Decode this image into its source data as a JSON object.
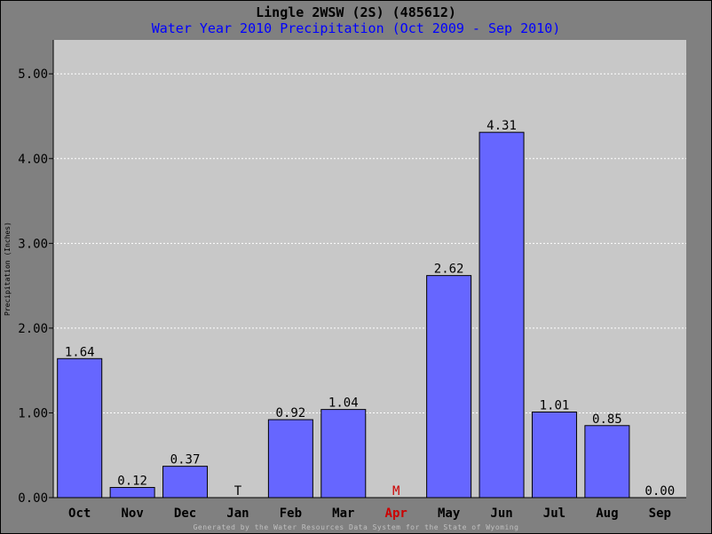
{
  "chart_data": {
    "type": "bar",
    "title": "Lingle 2WSW (2S) (485612)",
    "subtitle": "Water Year 2010 Precipitation (Oct 2009 - Sep 2010)",
    "ylabel": "Precipitation (Inches)",
    "xlabel": "",
    "ylim": [
      0,
      5.4
    ],
    "yticks": [
      "0.00",
      "1.00",
      "2.00",
      "3.00",
      "4.00",
      "5.00"
    ],
    "grid": true,
    "categories": [
      "Oct",
      "Nov",
      "Dec",
      "Jan",
      "Feb",
      "Mar",
      "Apr",
      "May",
      "Jun",
      "Jul",
      "Aug",
      "Sep"
    ],
    "values": [
      1.64,
      0.12,
      0.37,
      0,
      0.92,
      1.04,
      0,
      2.62,
      4.31,
      1.01,
      0.85,
      0
    ],
    "data_labels": [
      "1.64",
      "0.12",
      "0.37",
      "T",
      "0.92",
      "1.04",
      "M",
      "2.62",
      "4.31",
      "1.01",
      "0.85",
      "0.00"
    ],
    "missing_categories": [
      "Apr"
    ],
    "colors": {
      "bar": "#6666ff",
      "plot_background": "#c8c8c8",
      "frame_background": "#808080",
      "missing": "#cc0000",
      "subtitle": "#0000ff"
    }
  },
  "footer": "Generated by the Water Resources Data System for the State of Wyoming"
}
